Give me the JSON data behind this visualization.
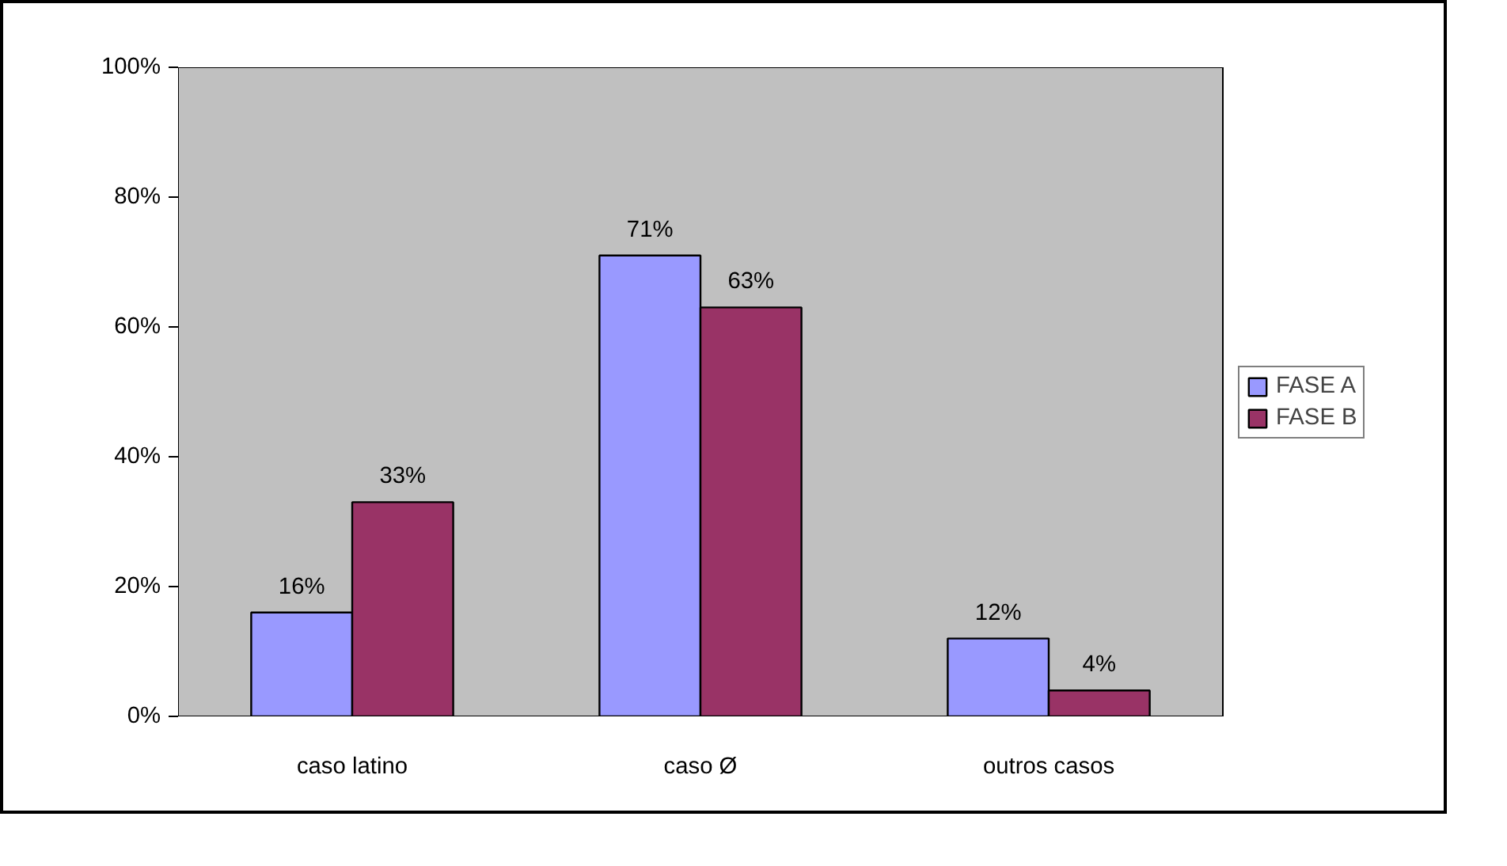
{
  "chart_data": {
    "type": "bar",
    "categories": [
      "caso latino",
      "caso Ø",
      "outros casos"
    ],
    "series": [
      {
        "name": "FASE A",
        "color": "#9999ff",
        "values": [
          16,
          71,
          12
        ],
        "value_labels": [
          "16%",
          "71%",
          "12%"
        ]
      },
      {
        "name": "FASE B",
        "color": "#993366",
        "values": [
          33,
          63,
          4
        ],
        "value_labels": [
          "33%",
          "63%",
          "4%"
        ]
      }
    ],
    "ylim": [
      0,
      100
    ],
    "yticks": [
      {
        "value": 0,
        "label": "0%"
      },
      {
        "value": 20,
        "label": "20%"
      },
      {
        "value": 40,
        "label": "40%"
      },
      {
        "value": 60,
        "label": "60%"
      },
      {
        "value": 80,
        "label": "80%"
      },
      {
        "value": 100,
        "label": "100%"
      }
    ],
    "grid": false,
    "legend": "right"
  }
}
